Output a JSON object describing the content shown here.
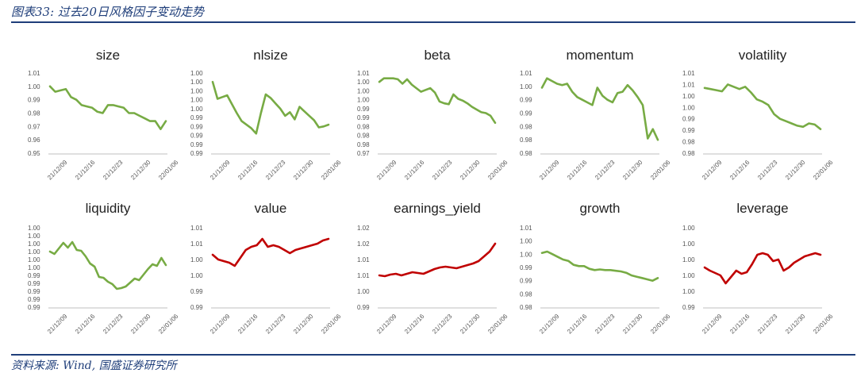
{
  "header": {
    "title": "图表33: 过去20日风格因子变动走势"
  },
  "footer": {
    "source": "资料来源: Wind, 国盛证券研究所"
  },
  "colors": {
    "green": "#77ab44",
    "red": "#c00000",
    "navy": "#1f3e7a"
  },
  "chart_data": [
    {
      "type": "line",
      "title": "size",
      "color": "green",
      "yticks": [
        "1.01",
        "1.00",
        "0.99",
        "0.98",
        "0.97",
        "0.96",
        "0.95"
      ],
      "ylim": [
        0.95,
        1.01
      ],
      "xticks": [
        "21/12/09",
        "21/12/16",
        "21/12/23",
        "21/12/30",
        "22/01/06"
      ],
      "values": [
        1.0,
        0.996,
        0.997,
        0.998,
        0.992,
        0.99,
        0.986,
        0.985,
        0.984,
        0.981,
        0.98,
        0.986,
        0.986,
        0.985,
        0.984,
        0.98,
        0.98,
        0.978,
        0.976,
        0.974,
        0.974,
        0.968,
        0.974
      ]
    },
    {
      "type": "line",
      "title": "nlsize",
      "color": "green",
      "yticks": [
        "1.00",
        "1.00",
        "1.00",
        "1.00",
        "1.00",
        "0.99",
        "0.99",
        "0.99",
        "0.99",
        "0.99"
      ],
      "ylim": [
        0.0,
        9.0
      ],
      "xticks": [
        "21/12/09",
        "21/12/16",
        "21/12/23",
        "21/12/30",
        "22/01/06"
      ],
      "values": [
        8.0,
        6.1,
        6.3,
        6.5,
        5.5,
        4.5,
        3.6,
        3.2,
        2.8,
        2.2,
        4.5,
        6.6,
        6.2,
        5.6,
        5.0,
        4.2,
        4.6,
        3.8,
        5.2,
        4.7,
        4.2,
        3.7,
        2.9,
        3.0,
        3.2
      ]
    },
    {
      "type": "line",
      "title": "beta",
      "color": "green",
      "yticks": [
        "1.01",
        "1.00",
        "1.00",
        "1.00",
        "0.99",
        "0.99",
        "0.98",
        "0.98",
        "0.98",
        "0.97"
      ],
      "ylim": [
        0.0,
        9.0
      ],
      "xticks": [
        "21/12/09",
        "21/12/16",
        "21/12/23",
        "21/12/30",
        "22/01/06"
      ],
      "values": [
        8.0,
        8.4,
        8.4,
        8.4,
        8.3,
        7.8,
        8.3,
        7.7,
        7.3,
        6.9,
        7.1,
        7.3,
        6.8,
        5.8,
        5.6,
        5.5,
        6.6,
        6.1,
        5.9,
        5.6,
        5.2,
        4.9,
        4.6,
        4.5,
        4.2,
        3.4
      ]
    },
    {
      "type": "line",
      "title": "momentum",
      "color": "green",
      "yticks": [
        "1.01",
        "1.00",
        "0.99",
        "0.99",
        "0.98",
        "0.98",
        "0.98"
      ],
      "ylim": [
        0.0,
        6.0
      ],
      "xticks": [
        "21/12/09",
        "21/12/16",
        "21/12/23",
        "21/12/30",
        "22/01/06"
      ],
      "values": [
        4.9,
        5.6,
        5.4,
        5.2,
        5.1,
        5.2,
        4.6,
        4.2,
        4.0,
        3.8,
        3.6,
        4.9,
        4.3,
        4.0,
        3.8,
        4.5,
        4.6,
        5.1,
        4.7,
        4.2,
        3.6,
        1.1,
        1.8,
        1.0
      ]
    },
    {
      "type": "line",
      "title": "volatility",
      "color": "green",
      "yticks": [
        "1.01",
        "1.01",
        "1.00",
        "1.00",
        "0.99",
        "0.99",
        "0.98",
        "0.98"
      ],
      "ylim": [
        0.0,
        7.0
      ],
      "xticks": [
        "21/12/09",
        "21/12/16",
        "21/12/23",
        "21/12/30",
        "22/01/06"
      ],
      "values": [
        5.7,
        5.6,
        5.5,
        5.4,
        6.0,
        5.8,
        5.6,
        5.8,
        5.3,
        4.7,
        4.5,
        4.2,
        3.4,
        3.0,
        2.8,
        2.6,
        2.4,
        2.3,
        2.6,
        2.5,
        2.1
      ]
    },
    {
      "type": "line",
      "title": "liquidity",
      "color": "green",
      "yticks": [
        "1.00",
        "1.00",
        "1.00",
        "1.00",
        "1.00",
        "1.00",
        "0.99",
        "0.99",
        "0.99",
        "0.99",
        "0.99"
      ],
      "ylim": [
        0.0,
        10.0
      ],
      "xticks": [
        "21/12/09",
        "21/12/16",
        "21/12/23",
        "21/12/30",
        "22/01/06"
      ],
      "values": [
        7.0,
        6.7,
        7.4,
        8.1,
        7.5,
        8.2,
        7.2,
        7.1,
        6.4,
        5.5,
        5.1,
        3.8,
        3.7,
        3.2,
        2.9,
        2.3,
        2.4,
        2.6,
        3.1,
        3.6,
        3.4,
        4.1,
        4.8,
        5.4,
        5.2,
        6.2,
        5.3
      ]
    },
    {
      "type": "line",
      "title": "value",
      "color": "red",
      "yticks": [
        "1.01",
        "1.01",
        "1.00",
        "1.00",
        "0.99",
        "0.99"
      ],
      "ylim": [
        0.0,
        5.0
      ],
      "xticks": [
        "21/12/09",
        "21/12/16",
        "21/12/23",
        "21/12/30",
        "22/01/06"
      ],
      "values": [
        3.3,
        3.0,
        2.9,
        2.8,
        2.6,
        3.1,
        3.6,
        3.8,
        3.9,
        4.3,
        3.8,
        3.9,
        3.8,
        3.6,
        3.4,
        3.6,
        3.7,
        3.8,
        3.9,
        4.0,
        4.2,
        4.3
      ]
    },
    {
      "type": "line",
      "title": "earnings_yield",
      "color": "red",
      "yticks": [
        "1.02",
        "1.02",
        "1.01",
        "1.01",
        "1.00",
        "0.99"
      ],
      "ylim": [
        0.0,
        5.0
      ],
      "xticks": [
        "21/12/09",
        "21/12/16",
        "21/12/23",
        "21/12/30",
        "22/01/06"
      ],
      "values": [
        2.0,
        1.95,
        2.05,
        2.1,
        2.0,
        2.1,
        2.2,
        2.15,
        2.1,
        2.25,
        2.4,
        2.5,
        2.55,
        2.5,
        2.45,
        2.55,
        2.65,
        2.75,
        2.9,
        3.2,
        3.5,
        4.0
      ]
    },
    {
      "type": "line",
      "title": "growth",
      "color": "green",
      "yticks": [
        "1.01",
        "1.00",
        "1.00",
        "0.99",
        "0.99",
        "0.98",
        "0.98"
      ],
      "ylim": [
        0.0,
        6.0
      ],
      "xticks": [
        "21/12/09",
        "21/12/16",
        "21/12/23",
        "21/12/30",
        "22/01/06"
      ],
      "values": [
        4.1,
        4.2,
        4.0,
        3.8,
        3.6,
        3.5,
        3.2,
        3.1,
        3.1,
        2.9,
        2.8,
        2.85,
        2.8,
        2.8,
        2.75,
        2.7,
        2.6,
        2.4,
        2.3,
        2.2,
        2.1,
        2.0,
        2.2
      ]
    },
    {
      "type": "line",
      "title": "leverage",
      "color": "red",
      "yticks": [
        "1.00",
        "1.00",
        "1.00",
        "1.00",
        "1.00",
        "0.99"
      ],
      "ylim": [
        0.0,
        5.0
      ],
      "xticks": [
        "21/12/09",
        "21/12/16",
        "21/12/23",
        "21/12/30",
        "22/01/06"
      ],
      "values": [
        2.5,
        2.3,
        2.15,
        2.0,
        1.5,
        1.9,
        2.3,
        2.1,
        2.2,
        2.7,
        3.3,
        3.4,
        3.3,
        2.9,
        3.0,
        2.3,
        2.5,
        2.8,
        3.0,
        3.2,
        3.3,
        3.4,
        3.3
      ]
    }
  ]
}
